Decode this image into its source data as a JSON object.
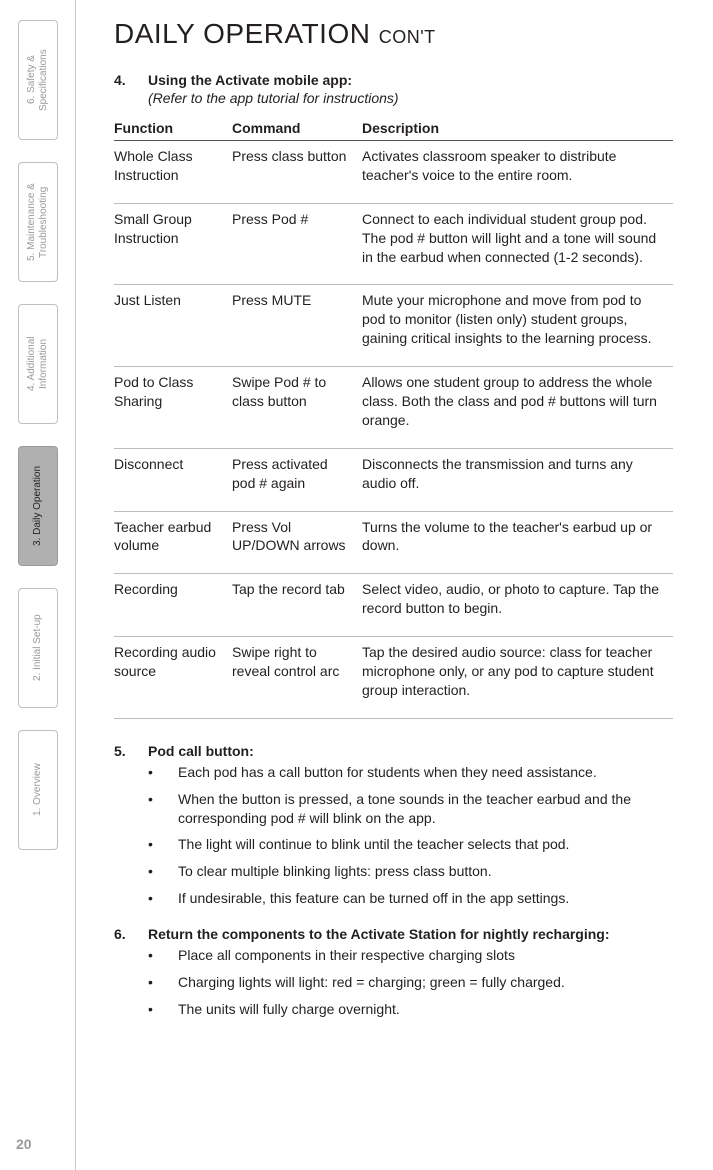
{
  "pageNumber": "20",
  "tabs": [
    {
      "label": "6. Safety & Specifications",
      "active": false
    },
    {
      "label": "5. Maintenance & Troubleshooting",
      "active": false
    },
    {
      "label": "4. Additional Information",
      "active": false
    },
    {
      "label": "3. Daily Operation",
      "active": true
    },
    {
      "label": "2. Initial Set-up",
      "active": false
    },
    {
      "label": "1. Overview",
      "active": false
    }
  ],
  "heading": {
    "main": "DAILY OPERATION ",
    "cont": "CON'T"
  },
  "section4": {
    "num": "4.",
    "title": "Using the Activate mobile app:",
    "refer": "(Refer to the app tutorial for instructions)"
  },
  "table": {
    "headers": {
      "func": "Function",
      "cmd": "Command",
      "desc": "Description"
    },
    "rows": [
      {
        "func": "Whole Class Instruction",
        "cmd": "Press class button",
        "desc": "Activates classroom speaker to distribute teacher's voice to the entire room."
      },
      {
        "func": "Small Group Instruction",
        "cmd": "Press Pod #",
        "desc": "Connect to each individual student group pod. The pod # button will light and a tone will sound in the earbud when connected (1-2 seconds)."
      },
      {
        "func": "Just Listen",
        "cmd": "Press MUTE",
        "desc": "Mute your microphone and move from pod to pod to monitor (listen only) student groups, gaining critical insights to the learning process."
      },
      {
        "func": "Pod to Class Sharing",
        "cmd": "Swipe Pod # to class button",
        "desc": "Allows one student group to address the whole class. Both the class and pod # buttons will turn orange."
      },
      {
        "func": "Disconnect",
        "cmd": "Press activated pod # again",
        "desc": "Disconnects the transmission and turns any audio off."
      },
      {
        "func": "Teacher earbud volume",
        "cmd": "Press Vol UP/DOWN arrows",
        "desc": "Turns the volume to the teacher's earbud up or down."
      },
      {
        "func": "Recording",
        "cmd": "Tap the record tab",
        "desc": "Select video, audio, or photo to capture. Tap the record button to begin."
      },
      {
        "func": "Recording audio source",
        "cmd": "Swipe right to reveal control arc",
        "desc": "Tap the desired audio source: class for teacher microphone only, or any pod to capture student group interaction."
      }
    ]
  },
  "section5": {
    "num": "5.",
    "title": "Pod call button:",
    "items": [
      "Each pod has a call button for students when they need assistance.",
      "When the button is pressed, a tone sounds in the teacher earbud and the corresponding pod # will blink on the app.",
      "The light will continue to blink until the teacher selects that pod.",
      "To clear multiple blinking lights: press class button.",
      "If undesirable, this feature can be turned off in the app settings."
    ]
  },
  "section6": {
    "num": "6.",
    "title": "Return the components to the Activate Station for nightly recharging:",
    "items": [
      "Place all components in their respective charging slots",
      "Charging lights will light: red = charging; green = fully charged.",
      "The units will fully charge overnight."
    ]
  }
}
